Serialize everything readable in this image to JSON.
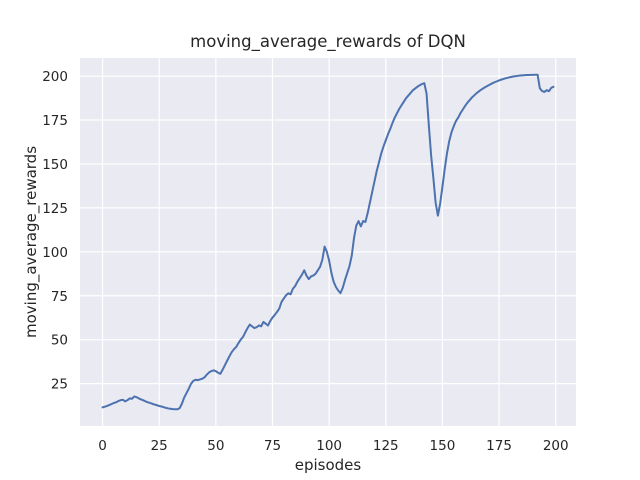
{
  "figure": {
    "background": "#FFFFFF"
  },
  "chart_data": {
    "type": "line",
    "title": "moving_average_rewards of DQN",
    "xlabel": "episodes",
    "ylabel": "moving_average_rewards",
    "legend": "none",
    "grid": true,
    "x_ticks": [
      0,
      25,
      50,
      75,
      100,
      125,
      150,
      175,
      200
    ],
    "y_ticks": [
      25,
      50,
      75,
      100,
      125,
      150,
      175,
      200
    ],
    "xlim": [
      -9.95,
      208.95
    ],
    "ylim": [
      0.9,
      210.3
    ],
    "colors": {
      "line": "#4C72B0",
      "plot_bg": "#EAEAF2",
      "grid": "#FFFFFF",
      "text": "#262626",
      "figure_bg": "#FFFFFF"
    },
    "series": [
      {
        "name": "moving_average_rewards",
        "points": [
          [
            0,
            11.5
          ],
          [
            1,
            11.9
          ],
          [
            2,
            12.3
          ],
          [
            3,
            12.9
          ],
          [
            4,
            13.4
          ],
          [
            5,
            14.0
          ],
          [
            6,
            14.4
          ],
          [
            7,
            15.1
          ],
          [
            8,
            15.6
          ],
          [
            9,
            15.8
          ],
          [
            10,
            14.9
          ],
          [
            11,
            15.6
          ],
          [
            12,
            16.6
          ],
          [
            13,
            16.4
          ],
          [
            14,
            17.7
          ],
          [
            15,
            17.3
          ],
          [
            16,
            16.6
          ],
          [
            17,
            16.0
          ],
          [
            18,
            15.5
          ],
          [
            19,
            14.9
          ],
          [
            20,
            14.4
          ],
          [
            21,
            14.0
          ],
          [
            22,
            13.5
          ],
          [
            23,
            13.1
          ],
          [
            24,
            12.7
          ],
          [
            25,
            12.3
          ],
          [
            26,
            12.0
          ],
          [
            27,
            11.6
          ],
          [
            28,
            11.2
          ],
          [
            29,
            10.9
          ],
          [
            30,
            10.7
          ],
          [
            31,
            10.5
          ],
          [
            32,
            10.4
          ],
          [
            33,
            10.4
          ],
          [
            34,
            11.0
          ],
          [
            35,
            13.5
          ],
          [
            36,
            17.0
          ],
          [
            37,
            19.5
          ],
          [
            38,
            22.0
          ],
          [
            39,
            24.8
          ],
          [
            40,
            26.5
          ],
          [
            41,
            27.2
          ],
          [
            42,
            27.0
          ],
          [
            43,
            27.4
          ],
          [
            44,
            27.8
          ],
          [
            45,
            28.6
          ],
          [
            46,
            30.1
          ],
          [
            47,
            31.4
          ],
          [
            48,
            32.1
          ],
          [
            49,
            32.6
          ],
          [
            50,
            32.1
          ],
          [
            51,
            31.2
          ],
          [
            52,
            30.6
          ],
          [
            53,
            33.0
          ],
          [
            54,
            35.5
          ],
          [
            55,
            38.1
          ],
          [
            56,
            40.6
          ],
          [
            57,
            42.9
          ],
          [
            58,
            44.6
          ],
          [
            59,
            45.9
          ],
          [
            60,
            48.1
          ],
          [
            61,
            50.1
          ],
          [
            62,
            51.6
          ],
          [
            63,
            54.2
          ],
          [
            64,
            56.6
          ],
          [
            65,
            58.6
          ],
          [
            66,
            57.6
          ],
          [
            67,
            56.6
          ],
          [
            68,
            57.1
          ],
          [
            69,
            58.1
          ],
          [
            70,
            57.6
          ],
          [
            71,
            60.1
          ],
          [
            72,
            59.1
          ],
          [
            73,
            58.1
          ],
          [
            74,
            60.6
          ],
          [
            75,
            62.6
          ],
          [
            76,
            64.1
          ],
          [
            77,
            65.8
          ],
          [
            78,
            67.7
          ],
          [
            79,
            71.5
          ],
          [
            80,
            73.5
          ],
          [
            81,
            75.3
          ],
          [
            82,
            76.4
          ],
          [
            83,
            75.8
          ],
          [
            84,
            79.0
          ],
          [
            85,
            80.5
          ],
          [
            86,
            83.0
          ],
          [
            87,
            85.0
          ],
          [
            88,
            87.0
          ],
          [
            89,
            89.5
          ],
          [
            90,
            86.5
          ],
          [
            91,
            84.5
          ],
          [
            92,
            86.0
          ],
          [
            93,
            86.5
          ],
          [
            94,
            87.5
          ],
          [
            95,
            89.5
          ],
          [
            96,
            91.5
          ],
          [
            97,
            95.5
          ],
          [
            98,
            103.0
          ],
          [
            99,
            100.0
          ],
          [
            100,
            95.0
          ],
          [
            101,
            88.0
          ],
          [
            102,
            83.0
          ],
          [
            103,
            80.0
          ],
          [
            104,
            78.0
          ],
          [
            105,
            76.5
          ],
          [
            106,
            79.5
          ],
          [
            107,
            84.0
          ],
          [
            108,
            88.0
          ],
          [
            109,
            92.0
          ],
          [
            110,
            98.0
          ],
          [
            111,
            108.0
          ],
          [
            112,
            115.0
          ],
          [
            113,
            117.5
          ],
          [
            114,
            114.5
          ],
          [
            115,
            117.5
          ],
          [
            116,
            117.0
          ],
          [
            117,
            122.0
          ],
          [
            118,
            128.0
          ],
          [
            119,
            134.0
          ],
          [
            120,
            140.0
          ],
          [
            121,
            146.0
          ],
          [
            122,
            151.0
          ],
          [
            123,
            156.0
          ],
          [
            124,
            160.0
          ],
          [
            125,
            163.5
          ],
          [
            126,
            167.0
          ],
          [
            127,
            170.0
          ],
          [
            128,
            173.5
          ],
          [
            129,
            176.5
          ],
          [
            130,
            179.0
          ],
          [
            131,
            181.5
          ],
          [
            132,
            183.5
          ],
          [
            133,
            185.5
          ],
          [
            134,
            187.5
          ],
          [
            135,
            189.0
          ],
          [
            136,
            190.5
          ],
          [
            137,
            192.0
          ],
          [
            138,
            193.0
          ],
          [
            139,
            194.0
          ],
          [
            140,
            194.8
          ],
          [
            141,
            195.5
          ],
          [
            142,
            196.0
          ],
          [
            143,
            190.0
          ],
          [
            144,
            172.0
          ],
          [
            145,
            155.0
          ],
          [
            146,
            142.0
          ],
          [
            147,
            128.0
          ],
          [
            148,
            120.6
          ],
          [
            149,
            127.5
          ],
          [
            150,
            137.0
          ],
          [
            151,
            147.0
          ],
          [
            152,
            156.0
          ],
          [
            153,
            163.0
          ],
          [
            154,
            168.0
          ],
          [
            155,
            171.5
          ],
          [
            156,
            174.5
          ],
          [
            157,
            176.5
          ],
          [
            158,
            179.0
          ],
          [
            159,
            181.0
          ],
          [
            160,
            183.0
          ],
          [
            161,
            184.8
          ],
          [
            162,
            186.3
          ],
          [
            163,
            187.8
          ],
          [
            164,
            189.0
          ],
          [
            165,
            190.2
          ],
          [
            166,
            191.2
          ],
          [
            167,
            192.2
          ],
          [
            168,
            193.0
          ],
          [
            169,
            193.8
          ],
          [
            170,
            194.5
          ],
          [
            171,
            195.2
          ],
          [
            172,
            195.9
          ],
          [
            173,
            196.5
          ],
          [
            174,
            197.0
          ],
          [
            175,
            197.5
          ],
          [
            176,
            198.0
          ],
          [
            177,
            198.4
          ],
          [
            178,
            198.8
          ],
          [
            179,
            199.1
          ],
          [
            180,
            199.4
          ],
          [
            181,
            199.7
          ],
          [
            182,
            199.9
          ],
          [
            183,
            200.1
          ],
          [
            184,
            200.3
          ],
          [
            185,
            200.4
          ],
          [
            186,
            200.5
          ],
          [
            187,
            200.6
          ],
          [
            188,
            200.6
          ],
          [
            189,
            200.7
          ],
          [
            190,
            200.7
          ],
          [
            191,
            200.8
          ],
          [
            192,
            200.8
          ],
          [
            193,
            193.0
          ],
          [
            194,
            191.5
          ],
          [
            195,
            191.0
          ],
          [
            196,
            192.0
          ],
          [
            197,
            191.4
          ],
          [
            198,
            193.3
          ],
          [
            199,
            193.9
          ]
        ]
      }
    ]
  }
}
